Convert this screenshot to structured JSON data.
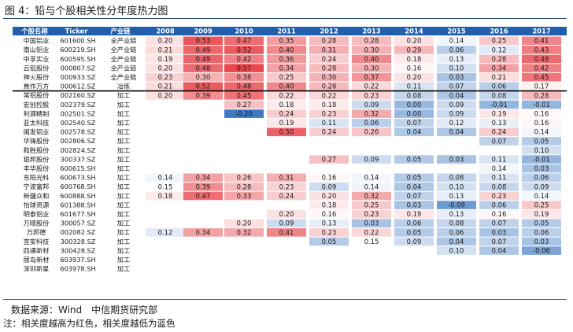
{
  "title": "图 4：铅与个股相关性分年度热力图",
  "source": "数据来源：Wind　中信期货研究部",
  "note": "注：相关度越高为红色，相关度越低为蓝色",
  "colors": {
    "header": "#1f5fae",
    "header_text": "#ffffff",
    "high": "#e8474d",
    "low": "#3f79c4",
    "mid": "#ffffff"
  },
  "chart_data": {
    "type": "heatmap",
    "columns": [
      "个股名称",
      "Ticker",
      "产业链",
      "2008",
      "2009",
      "2010",
      "2011",
      "2012",
      "2013",
      "2014",
      "2015",
      "2016",
      "2017"
    ],
    "years": [
      "2008",
      "2009",
      "2010",
      "2011",
      "2012",
      "2013",
      "2014",
      "2015",
      "2016",
      "2017"
    ],
    "rows": [
      {
        "name": "中国铝业",
        "ticker": "601600.SH",
        "chain": "全产业链",
        "values": [
          0.2,
          0.53,
          0.47,
          0.35,
          0.28,
          0.28,
          0.2,
          0.14,
          0.25,
          0.41
        ]
      },
      {
        "name": "南山铝业",
        "ticker": "600219.SH",
        "chain": "全产业链",
        "values": [
          0.21,
          0.49,
          0.52,
          0.4,
          0.31,
          0.3,
          0.29,
          0.06,
          0.12,
          0.43
        ]
      },
      {
        "name": "中孚实业",
        "ticker": "600595.SH",
        "chain": "全产业链",
        "values": [
          0.19,
          0.49,
          0.42,
          0.36,
          0.24,
          0.4,
          0.18,
          0.13,
          0.28,
          0.48
        ]
      },
      {
        "name": "云铝股份",
        "ticker": "000807.SZ",
        "chain": "全产业链",
        "values": [
          0.2,
          0.48,
          0.57,
          0.34,
          0.28,
          0.3,
          0.16,
          0.1,
          0.34,
          0.42
        ]
      },
      {
        "name": "神火股份",
        "ticker": "000933.SZ",
        "chain": "全产业链",
        "values": [
          0.23,
          0.3,
          0.38,
          0.25,
          0.3,
          0.37,
          0.2,
          0.03,
          0.21,
          0.45
        ]
      },
      {
        "name": "焦作万方",
        "ticker": "000612.SZ",
        "chain": "冶炼",
        "values": [
          0.21,
          0.52,
          0.48,
          0.4,
          0.28,
          0.22,
          0.11,
          0.07,
          0.06,
          0.17
        ]
      },
      {
        "name": "常铝股份",
        "ticker": "002160.SZ",
        "chain": "加工",
        "values": [
          0.2,
          0.39,
          0.45,
          0.22,
          0.22,
          0.23,
          0.08,
          0.04,
          0.08,
          0.28
        ]
      },
      {
        "name": "宏创控股",
        "ticker": "002379.SZ",
        "chain": "加工",
        "values": [
          null,
          null,
          0.27,
          0.18,
          0.18,
          0.09,
          0.0,
          0.09,
          -0.01,
          -0.01
        ]
      },
      {
        "name": "利源精制",
        "ticker": "002501.SZ",
        "chain": "加工",
        "values": [
          null,
          null,
          -0.2,
          0.24,
          0.23,
          0.32,
          0.0,
          0.09,
          0.19,
          0.16
        ]
      },
      {
        "name": "亚太科技",
        "ticker": "002540.SZ",
        "chain": "加工",
        "values": [
          null,
          null,
          null,
          0.19,
          0.11,
          0.06,
          0.07,
          0.12,
          0.13,
          0.16
        ]
      },
      {
        "name": "闽发铝业",
        "ticker": "002578.SZ",
        "chain": "加工",
        "values": [
          null,
          null,
          null,
          0.5,
          0.24,
          0.26,
          0.04,
          0.04,
          0.24,
          0.14
        ]
      },
      {
        "name": "华锋股份",
        "ticker": "002806.SZ",
        "chain": "加工",
        "values": [
          null,
          null,
          null,
          null,
          null,
          null,
          null,
          null,
          0.07,
          0.05
        ]
      },
      {
        "name": "和胜股份",
        "ticker": "002824.SZ",
        "chain": "加工",
        "values": [
          null,
          null,
          null,
          null,
          null,
          null,
          null,
          null,
          null,
          0.1
        ]
      },
      {
        "name": "银邦股份",
        "ticker": "300337.SZ",
        "chain": "加工",
        "values": [
          null,
          null,
          null,
          null,
          0.27,
          0.09,
          0.05,
          0.03,
          0.11,
          -0.01
        ]
      },
      {
        "name": "丰华股份",
        "ticker": "600615.SH",
        "chain": "加工",
        "values": [
          null,
          null,
          null,
          null,
          null,
          null,
          null,
          null,
          0.14,
          0.03
        ]
      },
      {
        "name": "东阳光科",
        "ticker": "600673.SH",
        "chain": "加工",
        "values": [
          0.14,
          0.34,
          0.26,
          0.31,
          0.16,
          0.14,
          0.05,
          0.08,
          0.11,
          0.06
        ]
      },
      {
        "name": "宁波富邦",
        "ticker": "600768.SH",
        "chain": "加工",
        "values": [
          0.15,
          0.39,
          0.28,
          0.23,
          0.09,
          0.14,
          0.04,
          0.1,
          0.08,
          0.09
        ]
      },
      {
        "name": "新疆众和",
        "ticker": "600888.SH",
        "chain": "加工",
        "values": [
          0.18,
          0.47,
          0.33,
          0.24,
          0.2,
          0.32,
          0.07,
          0.13,
          0.23,
          0.14
        ]
      },
      {
        "name": "怡球资源",
        "ticker": "601388.SH",
        "chain": "加工",
        "values": [
          null,
          null,
          null,
          null,
          0.18,
          0.25,
          0.03,
          -0.09,
          0.06,
          0.25
        ]
      },
      {
        "name": "明泰铝业",
        "ticker": "601677.SH",
        "chain": "加工",
        "values": [
          null,
          null,
          null,
          0.2,
          0.16,
          0.23,
          0.19,
          0.13,
          0.16,
          0.19
        ]
      },
      {
        "name": "万顺股份",
        "ticker": "300057.SZ",
        "chain": "加工",
        "values": [
          null,
          null,
          0.2,
          0.09,
          0.13,
          0.03,
          0.06,
          0.08,
          0.07,
          0.05
        ]
      },
      {
        "name": "万邦德",
        "ticker": "002082.SZ",
        "chain": "加工",
        "values": [
          0.12,
          0.34,
          0.32,
          0.41,
          0.23,
          0.22,
          0.05,
          0.06,
          0.03,
          0.06
        ]
      },
      {
        "name": "宜安科技",
        "ticker": "300328.SZ",
        "chain": "加工",
        "values": [
          null,
          null,
          null,
          null,
          0.05,
          0.15,
          0.09,
          0.04,
          0.07,
          0.03
        ]
      },
      {
        "name": "四通新材",
        "ticker": "300428.SZ",
        "chain": "加工",
        "values": [
          null,
          null,
          null,
          null,
          null,
          null,
          null,
          0.1,
          0.04,
          -0.06
        ]
      },
      {
        "name": "丽岛新材",
        "ticker": "603937.SH",
        "chain": "加工",
        "values": [
          null,
          null,
          null,
          null,
          null,
          null,
          null,
          null,
          null,
          null
        ]
      },
      {
        "name": "深圳新星",
        "ticker": "603978.SH",
        "chain": "加工",
        "values": [
          null,
          null,
          null,
          null,
          null,
          null,
          null,
          null,
          null,
          null
        ]
      }
    ],
    "color_scale": {
      "min": -0.2,
      "mid": 0.15,
      "max": 0.57
    }
  }
}
